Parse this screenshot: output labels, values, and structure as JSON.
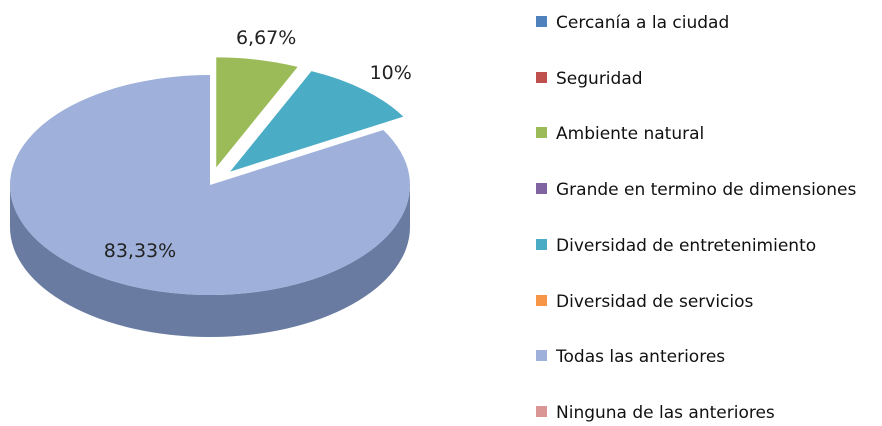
{
  "chart_data": {
    "type": "pie",
    "categories": [
      "Cercanía a la ciudad",
      "Seguridad",
      "Ambiente natural",
      "Grande en termino de dimensiones",
      "Diversidad de entretenimiento",
      "Diversidad de servicios",
      "Todas las anteriores",
      "Ninguna de las anteriores"
    ],
    "values": [
      0,
      0,
      6.67,
      0,
      10,
      0,
      83.33,
      0
    ],
    "value_labels": [
      null,
      null,
      "6,67%",
      null,
      "10%",
      null,
      "83,33%",
      null
    ],
    "colors": [
      "#4f81bd",
      "#c0504d",
      "#9bbb59",
      "#8064a2",
      "#4bacc6",
      "#f79646",
      "#9fb1db",
      "#d99694"
    ]
  }
}
